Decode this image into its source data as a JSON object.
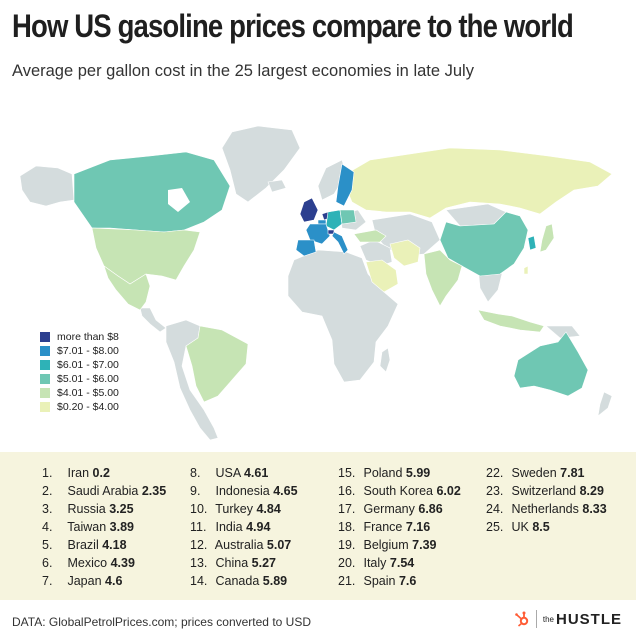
{
  "header": {
    "title": "How US gasoline prices compare to the world",
    "subtitle": "Average per gallon cost in the 25 largest economies in late July"
  },
  "colors": {
    "ocean": "#ffffff",
    "no_data": "#d4dcdd",
    "tier_8plus": "#2c3f8f",
    "tier_7_8": "#2b90c8",
    "tier_6_7": "#2eb2b7",
    "tier_5_6": "#6fc7b3",
    "tier_4_5": "#c6e4b4",
    "tier_0_4": "#eaf1b8"
  },
  "legend": [
    {
      "label": "more than $8",
      "color": "#2c3f8f"
    },
    {
      "label": "$7.01 - $8.00",
      "color": "#2b90c8"
    },
    {
      "label": "$6.01 - $7.00",
      "color": "#2eb2b7"
    },
    {
      "label": "$5.01 - $6.00",
      "color": "#6fc7b3"
    },
    {
      "label": "$4.01 - $5.00",
      "color": "#c6e4b4"
    },
    {
      "label": "$0.20 - $4.00",
      "color": "#eaf1b8"
    }
  ],
  "rankings": [
    {
      "rank": "1.",
      "country": "Iran",
      "price": "0.2"
    },
    {
      "rank": "2.",
      "country": "Saudi Arabia",
      "price": "2.35"
    },
    {
      "rank": "3.",
      "country": "Russia",
      "price": "3.25"
    },
    {
      "rank": "4.",
      "country": "Taiwan",
      "price": "3.89"
    },
    {
      "rank": "5.",
      "country": "Brazil",
      "price": "4.18"
    },
    {
      "rank": "6.",
      "country": "Mexico",
      "price": "4.39"
    },
    {
      "rank": "7.",
      "country": "Japan",
      "price": "4.6"
    },
    {
      "rank": "8.",
      "country": "USA",
      "price": "4.61"
    },
    {
      "rank": "9.",
      "country": "Indonesia",
      "price": "4.65"
    },
    {
      "rank": "10.",
      "country": "Turkey",
      "price": "4.84"
    },
    {
      "rank": "11.",
      "country": "India",
      "price": "4.94"
    },
    {
      "rank": "12.",
      "country": "Australia",
      "price": "5.07"
    },
    {
      "rank": "13.",
      "country": "China",
      "price": "5.27"
    },
    {
      "rank": "14.",
      "country": "Canada",
      "price": "5.89"
    },
    {
      "rank": "15.",
      "country": "Poland",
      "price": "5.99"
    },
    {
      "rank": "16.",
      "country": "South Korea",
      "price": "6.02"
    },
    {
      "rank": "17.",
      "country": "Germany",
      "price": "6.86"
    },
    {
      "rank": "18.",
      "country": "France",
      "price": "7.16"
    },
    {
      "rank": "19.",
      "country": "Belgium",
      "price": "7.39"
    },
    {
      "rank": "20.",
      "country": "Italy",
      "price": "7.54"
    },
    {
      "rank": "21.",
      "country": "Spain",
      "price": "7.6"
    },
    {
      "rank": "22.",
      "country": "Sweden",
      "price": "7.81"
    },
    {
      "rank": "23.",
      "country": "Switzerland",
      "price": "8.29"
    },
    {
      "rank": "24.",
      "country": "Netherlands",
      "price": "8.33"
    },
    {
      "rank": "25.",
      "country": "UK",
      "price": "8.5"
    }
  ],
  "footer": {
    "source": "DATA: GlobalPetrolPrices.com; prices converted to USD",
    "brand_the": "the",
    "brand_name": "HUSTLE",
    "brand_logo": "hubspot-sprocket-icon"
  }
}
